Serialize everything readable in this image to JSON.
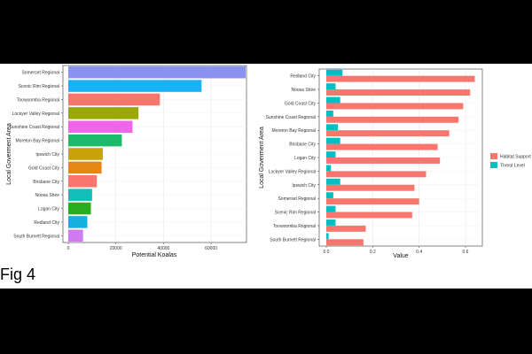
{
  "figure_label": "Fig 4",
  "chart_data": [
    {
      "type": "bar",
      "orientation": "horizontal",
      "xlabel": "Potential Koalas",
      "ylabel": "Local Goverment Area",
      "xlim": [
        0,
        80000
      ],
      "xticks": [
        "0",
        "20000",
        "40000",
        "60000"
      ],
      "grid": true,
      "categories": [
        "Somerset Regional",
        "Scenic Rim Regional",
        "Toowoomba Regional",
        "Lockyer Valley Regional",
        "Sunshine Coast Regional",
        "Moreton Bay Regional",
        "Ipswich City",
        "Gold Coast City",
        "Brisbane City",
        "Noosa Shire",
        "Logan City",
        "Redland City",
        "South Burnett Regional"
      ],
      "values": [
        74500,
        56000,
        38500,
        29500,
        27000,
        22500,
        14500,
        14000,
        12000,
        10000,
        9500,
        8000,
        6200
      ],
      "colors": [
        "#8b93f0",
        "#19b2f5",
        "#f8766d",
        "#9aa800",
        "#f066ea",
        "#1bbb6b",
        "#c9a20a",
        "#e68613",
        "#f8766d",
        "#11bfb8",
        "#27ad1d",
        "#15b0dd",
        "#d07af2"
      ]
    },
    {
      "type": "bar",
      "orientation": "horizontal",
      "xlabel": "Value",
      "ylabel": "Local Goverment Area",
      "xlim": [
        -0.02,
        0.68
      ],
      "xticks": [
        "0.0",
        "0.2",
        "0.4",
        "0.6"
      ],
      "grid": true,
      "legend_position": "right",
      "categories": [
        "Redland City",
        "Noosa Shire",
        "Gold Coast City",
        "Sunshine Coast Regional",
        "Moreton Bay Regional",
        "Brisbane City",
        "Logan City",
        "Lockyer Valley Regional",
        "Ipswich City",
        "Somerset Regional",
        "Scenic Rim Regional",
        "Toowoomba Regional",
        "South Burnett Regional"
      ],
      "series": [
        {
          "name": "Habitat Support",
          "color": "#f8766d",
          "values": [
            0.64,
            0.62,
            0.59,
            0.57,
            0.53,
            0.48,
            0.49,
            0.43,
            0.38,
            0.4,
            0.37,
            0.17,
            0.16
          ]
        },
        {
          "name": "Threat Level",
          "color": "#00bfc4",
          "values": [
            0.07,
            0.04,
            0.06,
            0.03,
            0.05,
            0.06,
            0.04,
            0.02,
            0.06,
            0.03,
            0.04,
            0.04,
            0.01
          ]
        }
      ]
    }
  ]
}
